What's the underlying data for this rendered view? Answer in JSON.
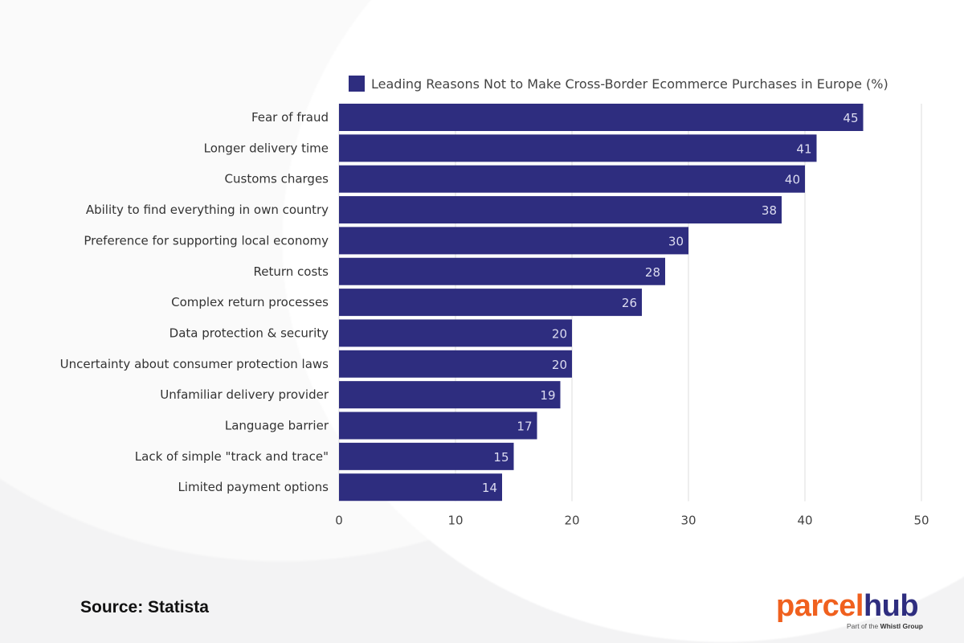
{
  "chart_data": {
    "type": "bar",
    "orientation": "horizontal",
    "legend": {
      "label": "Leading Reasons Not to Make Cross-Border Ecommerce Purchases in Europe (%)",
      "placement": "top"
    },
    "categories": [
      "Fear of fraud",
      "Longer delivery time",
      "Customs charges",
      "Ability to find everything in own country",
      "Preference for supporting local economy",
      "Return costs",
      "Complex return processes",
      "Data protection & security",
      "Uncertainty about consumer protection laws",
      "Unfamiliar delivery provider",
      "Language barrier",
      "Lack of simple \"track and trace\"",
      "Limited payment options"
    ],
    "values": [
      45,
      41,
      40,
      38,
      30,
      28,
      26,
      20,
      20,
      19,
      17,
      15,
      14
    ],
    "xlim": [
      0,
      50
    ],
    "xticks": [
      "0",
      "10",
      "20",
      "30",
      "40",
      "50"
    ],
    "grid": "vertical",
    "data_labels": true,
    "bar_color": "#2e2d7f"
  },
  "source": "Source: Statista",
  "logo": {
    "part1": "parcel",
    "part2": "hub",
    "tagline_prefix": "Part of the ",
    "tagline_brand": "Whistl Group",
    "colors": {
      "orange": "#f0601e",
      "navy": "#2e2d7f"
    }
  }
}
